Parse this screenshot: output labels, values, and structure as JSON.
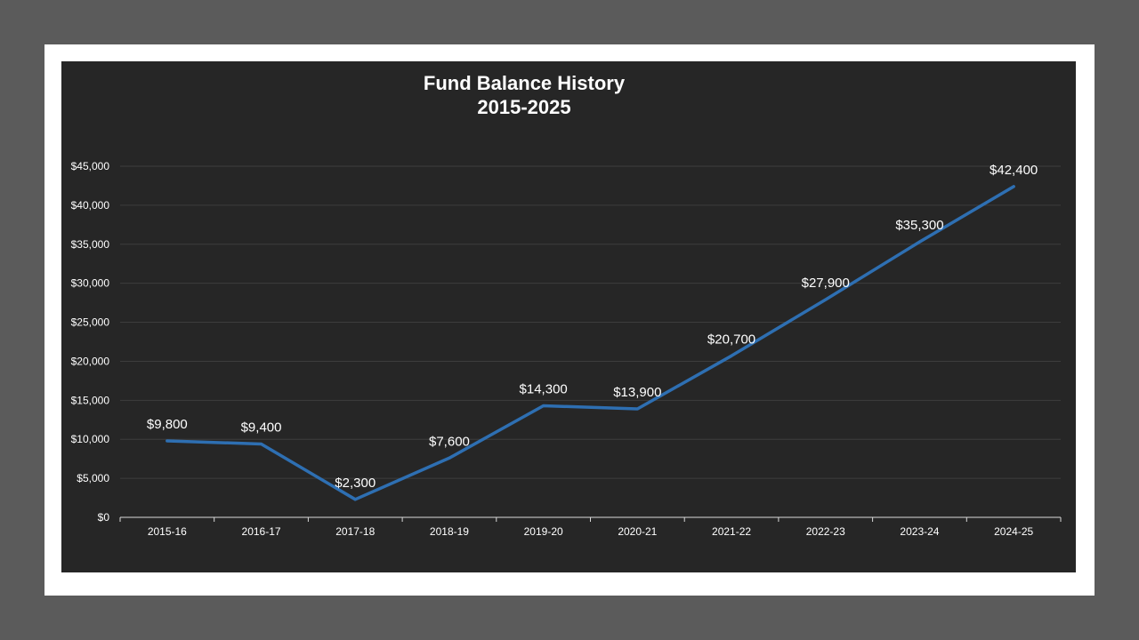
{
  "colors": {
    "outer_bg": "#5b5b5b",
    "frame": "#ffffff",
    "plot_bg": "#262626",
    "line": "#2e6fb2",
    "text": "#ffffff",
    "grid": "#3d3d3d"
  },
  "chart_data": {
    "type": "line",
    "title_line1": "Fund Balance History",
    "title_line2": "2015-2025",
    "xlabel": "",
    "ylabel": "",
    "categories": [
      "2015-16",
      "2016-17",
      "2017-18",
      "2018-19",
      "2019-20",
      "2020-21",
      "2021-22",
      "2022-23",
      "2023-24",
      "2024-25"
    ],
    "values": [
      9800,
      9400,
      2300,
      7600,
      14300,
      13900,
      20700,
      27900,
      35300,
      42400
    ],
    "data_labels": [
      "$9,800",
      "$9,400",
      "$2,300",
      "$7,600",
      "$14,300",
      "$13,900",
      "$20,700",
      "$27,900",
      "$35,300",
      "$42,400"
    ],
    "y_ticks": [
      0,
      5000,
      10000,
      15000,
      20000,
      25000,
      30000,
      35000,
      40000,
      45000
    ],
    "y_tick_labels": [
      "$0",
      "$5,000",
      "$10,000",
      "$15,000",
      "$20,000",
      "$25,000",
      "$30,000",
      "$35,000",
      "$40,000",
      "$45,000"
    ],
    "ylim": [
      0,
      45000
    ],
    "grid": true,
    "legend": "none"
  }
}
